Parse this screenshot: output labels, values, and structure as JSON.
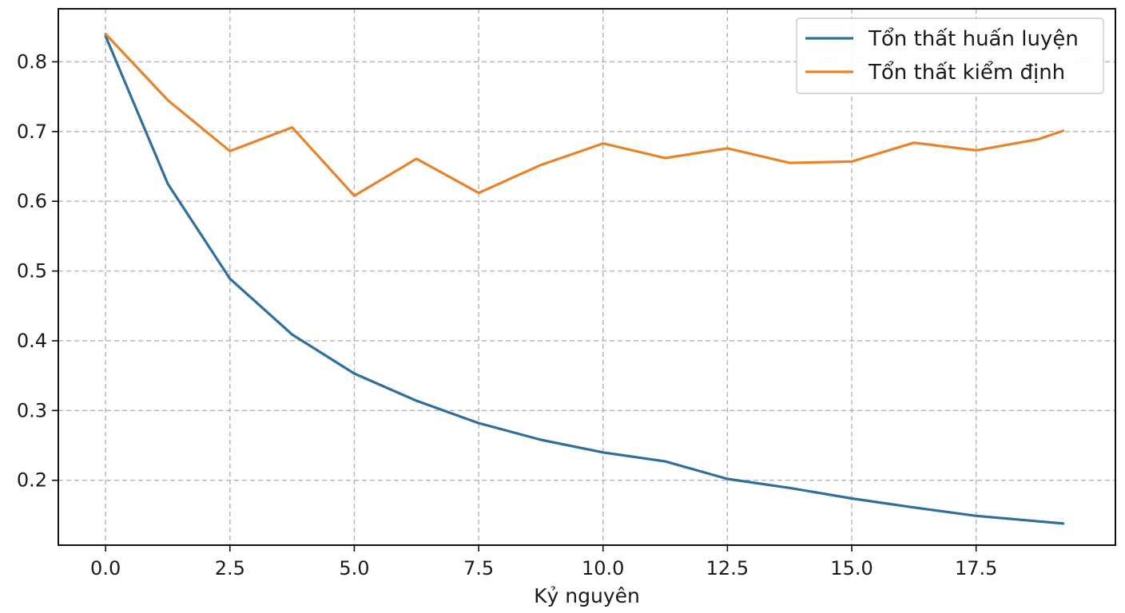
{
  "chart_data": {
    "type": "line",
    "title": "",
    "xlabel": "Kỷ nguyên",
    "ylabel": "",
    "xlim": [
      -0.95,
      20.3
    ],
    "ylim": [
      0.107,
      0.876
    ],
    "xticks": [
      0,
      2.5,
      5,
      7.5,
      10,
      12.5,
      15,
      17.5
    ],
    "xtick_labels": [
      "0.0",
      "2.5",
      "5.0",
      "7.5",
      "10.0",
      "12.5",
      "15.0",
      "17.5"
    ],
    "yticks": [
      0.2,
      0.3,
      0.4,
      0.5,
      0.6,
      0.7,
      0.8
    ],
    "ytick_labels": [
      "0.2",
      "0.3",
      "0.4",
      "0.5",
      "0.6",
      "0.7",
      "0.8"
    ],
    "grid": true,
    "legend_position": "top-right",
    "series": [
      {
        "name": "Tổn thất huấn luyện",
        "color": "#2e6f9e",
        "x": [
          0,
          1.25,
          2.5,
          3.75,
          5,
          6.25,
          7.5,
          8.75,
          10,
          11.25,
          12.5,
          13.75,
          15,
          16.25,
          17.5,
          19.25
        ],
        "y": [
          0.837,
          0.625,
          0.489,
          0.409,
          0.353,
          0.314,
          0.282,
          0.258,
          0.24,
          0.227,
          0.202,
          0.189,
          0.174,
          0.161,
          0.149,
          0.138
        ]
      },
      {
        "name": "Tổn thất kiểm định",
        "color": "#e8832a",
        "x": [
          0,
          1.25,
          2.5,
          3.75,
          5,
          6.25,
          7.5,
          8.75,
          10,
          11.25,
          12.5,
          13.75,
          15,
          16.25,
          17.5,
          18.75,
          19.25
        ],
        "y": [
          0.84,
          0.745,
          0.672,
          0.706,
          0.608,
          0.661,
          0.612,
          0.652,
          0.683,
          0.662,
          0.676,
          0.655,
          0.657,
          0.684,
          0.673,
          0.689,
          0.701
        ]
      }
    ]
  }
}
